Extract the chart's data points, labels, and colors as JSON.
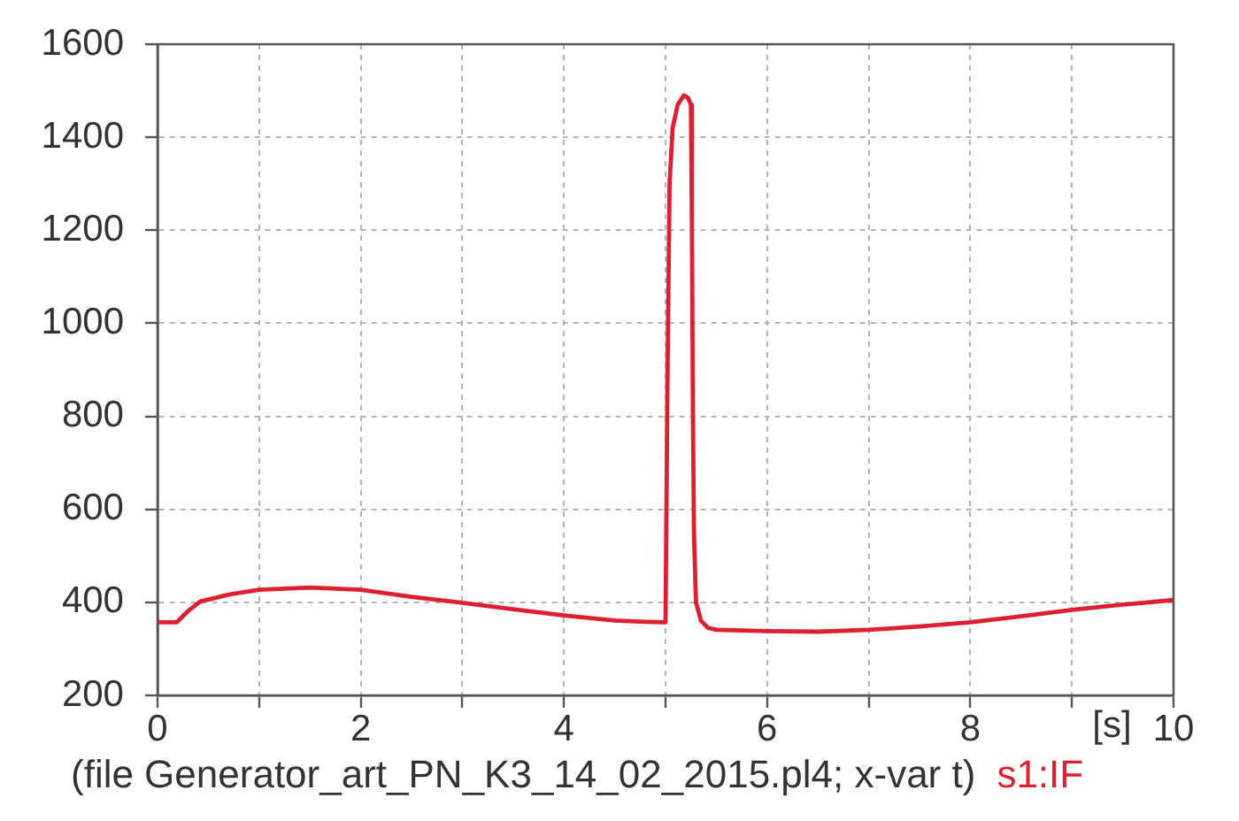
{
  "chart_data": {
    "type": "line",
    "xlabel": "[s]",
    "annotations": [
      "(file Generator_art_PN_K3_14_02_2015.pl4; x-var t)"
    ],
    "series": [
      {
        "name": "s1:IF",
        "color": "#dc2030",
        "x": [
          0,
          0.19,
          0.22,
          0.31,
          0.42,
          0.71,
          1.0,
          1.5,
          2.0,
          2.5,
          3.0,
          3.5,
          4.0,
          4.5,
          4.8,
          4.99,
          5.0,
          5.02,
          5.04,
          5.07,
          5.12,
          5.18,
          5.22,
          5.25,
          5.26,
          5.27,
          5.28,
          5.3,
          5.35,
          5.42,
          5.5,
          6.0,
          6.5,
          7.0,
          7.5,
          8.0,
          8.5,
          9.0,
          9.5,
          10
        ],
        "values": [
          357,
          357,
          364,
          383,
          402,
          417,
          427,
          432,
          427,
          412,
          399,
          385,
          372,
          361,
          358,
          357,
          357,
          900,
          1300,
          1420,
          1470,
          1490,
          1485,
          1470,
          1200,
          800,
          550,
          400,
          360,
          345,
          341,
          338,
          337,
          341,
          348,
          357,
          370,
          384,
          395,
          405
        ]
      }
    ],
    "xlim": [
      0,
      10
    ],
    "ylim": [
      200,
      1600
    ],
    "xticks": [
      0,
      {
        "value": 1,
        "label": null
      },
      2,
      {
        "value": 3,
        "label": null
      },
      4,
      {
        "value": 5,
        "label": null
      },
      6,
      {
        "value": 7,
        "label": null
      },
      8,
      {
        "value": 9,
        "label": null
      },
      10
    ],
    "yticks": [
      200,
      400,
      600,
      800,
      1000,
      1200,
      1400,
      1600
    ],
    "grid": true,
    "legend": "bottom",
    "marker": "none",
    "line_style": "solid"
  }
}
